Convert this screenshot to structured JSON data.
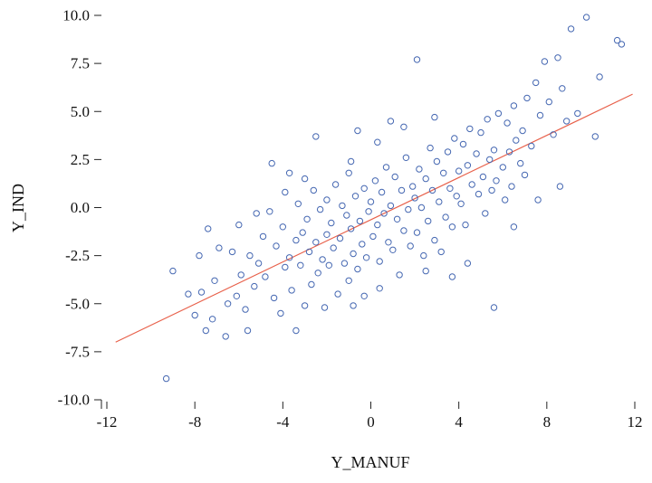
{
  "chart_data": {
    "type": "scatter",
    "title": "",
    "xlabel": "Y_MANUF",
    "ylabel": "Y_IND",
    "xlim": [
      -12,
      12
    ],
    "ylim": [
      -10,
      10
    ],
    "grid": false,
    "legend": null,
    "x_ticks": [
      -12,
      -8,
      -4,
      0,
      4,
      8,
      12
    ],
    "y_ticks": [
      10,
      7.5,
      5,
      2.5,
      0,
      -2.5,
      -5,
      -7.5,
      -10
    ],
    "point_color": "#4668b2",
    "fit_line": {
      "x1": -11.6,
      "y1": -7.0,
      "x2": 11.9,
      "y2": 5.9,
      "color": "#e8604a"
    },
    "points": [
      [
        -9.3,
        -8.9
      ],
      [
        -9.0,
        -3.3
      ],
      [
        -8.3,
        -4.5
      ],
      [
        -8.0,
        -5.6
      ],
      [
        -7.8,
        -2.5
      ],
      [
        -7.7,
        -4.4
      ],
      [
        -7.5,
        -6.4
      ],
      [
        -7.4,
        -1.1
      ],
      [
        -7.2,
        -5.8
      ],
      [
        -7.1,
        -3.8
      ],
      [
        -6.9,
        -2.1
      ],
      [
        -6.6,
        -6.7
      ],
      [
        -6.5,
        -5.0
      ],
      [
        -6.3,
        -2.3
      ],
      [
        -6.1,
        -4.6
      ],
      [
        -6.0,
        -0.9
      ],
      [
        -5.9,
        -3.5
      ],
      [
        -5.7,
        -5.3
      ],
      [
        -5.6,
        -6.4
      ],
      [
        -5.5,
        -2.5
      ],
      [
        -5.3,
        -4.1
      ],
      [
        -5.2,
        -0.3
      ],
      [
        -5.1,
        -2.9
      ],
      [
        -4.9,
        -1.5
      ],
      [
        -4.8,
        -3.6
      ],
      [
        -4.6,
        -0.2
      ],
      [
        -4.5,
        2.3
      ],
      [
        -4.4,
        -4.7
      ],
      [
        -4.3,
        -2.0
      ],
      [
        -4.1,
        -5.5
      ],
      [
        -4.0,
        -1.0
      ],
      [
        -3.9,
        -3.1
      ],
      [
        -3.9,
        0.8
      ],
      [
        -3.7,
        1.8
      ],
      [
        -3.7,
        -2.6
      ],
      [
        -3.6,
        -4.3
      ],
      [
        -3.4,
        -1.7
      ],
      [
        -3.4,
        -6.4
      ],
      [
        -3.3,
        0.2
      ],
      [
        -3.2,
        -3.0
      ],
      [
        -3.1,
        -1.3
      ],
      [
        -3.0,
        -5.1
      ],
      [
        -3.0,
        1.5
      ],
      [
        -2.9,
        -0.6
      ],
      [
        -2.8,
        -2.3
      ],
      [
        -2.7,
        -4.0
      ],
      [
        -2.6,
        0.9
      ],
      [
        -2.5,
        3.7
      ],
      [
        -2.5,
        -1.8
      ],
      [
        -2.4,
        -3.4
      ],
      [
        -2.3,
        -0.1
      ],
      [
        -2.2,
        -2.7
      ],
      [
        -2.1,
        -5.2
      ],
      [
        -2.0,
        0.4
      ],
      [
        -2.0,
        -1.4
      ],
      [
        -1.9,
        -3.0
      ],
      [
        -1.8,
        -0.8
      ],
      [
        -1.7,
        -2.1
      ],
      [
        -1.6,
        1.2
      ],
      [
        -1.5,
        -4.5
      ],
      [
        -1.4,
        -1.6
      ],
      [
        -1.3,
        0.1
      ],
      [
        -1.2,
        -2.9
      ],
      [
        -1.1,
        -0.4
      ],
      [
        -1.0,
        -3.8
      ],
      [
        -1.0,
        1.8
      ],
      [
        -0.9,
        -1.1
      ],
      [
        -0.9,
        2.4
      ],
      [
        -0.8,
        -2.4
      ],
      [
        -0.8,
        -5.1
      ],
      [
        -0.7,
        0.6
      ],
      [
        -0.6,
        -3.2
      ],
      [
        -0.6,
        4.0
      ],
      [
        -0.5,
        -0.7
      ],
      [
        -0.4,
        -1.9
      ],
      [
        -0.3,
        1.0
      ],
      [
        -0.3,
        -4.6
      ],
      [
        -0.2,
        -2.6
      ],
      [
        -0.1,
        -0.2
      ],
      [
        0.0,
        0.3
      ],
      [
        0.1,
        -1.5
      ],
      [
        0.2,
        1.4
      ],
      [
        0.3,
        -0.9
      ],
      [
        0.3,
        3.4
      ],
      [
        0.4,
        -2.8
      ],
      [
        0.4,
        -4.2
      ],
      [
        0.5,
        0.8
      ],
      [
        0.6,
        -0.3
      ],
      [
        0.7,
        2.1
      ],
      [
        0.8,
        -1.8
      ],
      [
        0.9,
        0.1
      ],
      [
        0.9,
        4.5
      ],
      [
        1.0,
        -2.2
      ],
      [
        1.1,
        1.6
      ],
      [
        1.2,
        -0.6
      ],
      [
        1.3,
        -3.5
      ],
      [
        1.4,
        0.9
      ],
      [
        1.5,
        -1.2
      ],
      [
        1.5,
        4.2
      ],
      [
        1.6,
        2.6
      ],
      [
        1.7,
        -0.1
      ],
      [
        1.8,
        -2.0
      ],
      [
        1.9,
        1.1
      ],
      [
        2.1,
        7.7
      ],
      [
        2.0,
        0.5
      ],
      [
        2.1,
        -1.3
      ],
      [
        2.2,
        2.0
      ],
      [
        2.3,
        0.0
      ],
      [
        2.4,
        -2.5
      ],
      [
        2.5,
        1.5
      ],
      [
        2.5,
        -3.3
      ],
      [
        2.6,
        -0.7
      ],
      [
        2.7,
        3.1
      ],
      [
        2.8,
        0.9
      ],
      [
        2.9,
        -1.7
      ],
      [
        2.9,
        4.7
      ],
      [
        3.0,
        2.4
      ],
      [
        3.1,
        0.3
      ],
      [
        3.2,
        -2.3
      ],
      [
        3.3,
        1.8
      ],
      [
        3.4,
        -0.5
      ],
      [
        3.5,
        2.9
      ],
      [
        3.6,
        1.0
      ],
      [
        3.7,
        -1.0
      ],
      [
        3.7,
        -3.6
      ],
      [
        3.8,
        3.6
      ],
      [
        3.9,
        0.6
      ],
      [
        4.0,
        1.9
      ],
      [
        4.1,
        0.2
      ],
      [
        4.2,
        3.3
      ],
      [
        4.3,
        -0.9
      ],
      [
        4.4,
        2.2
      ],
      [
        4.4,
        -2.9
      ],
      [
        4.5,
        4.1
      ],
      [
        4.6,
        1.2
      ],
      [
        4.8,
        2.8
      ],
      [
        4.9,
        0.7
      ],
      [
        5.0,
        3.9
      ],
      [
        5.1,
        1.6
      ],
      [
        5.2,
        -0.3
      ],
      [
        5.3,
        4.6
      ],
      [
        5.4,
        2.5
      ],
      [
        5.5,
        0.9
      ],
      [
        5.6,
        -5.2
      ],
      [
        5.6,
        3.0
      ],
      [
        5.7,
        1.4
      ],
      [
        5.8,
        4.9
      ],
      [
        6.0,
        2.1
      ],
      [
        6.1,
        0.4
      ],
      [
        6.2,
        4.4
      ],
      [
        6.3,
        2.9
      ],
      [
        6.4,
        1.1
      ],
      [
        6.5,
        5.3
      ],
      [
        6.5,
        -1.0
      ],
      [
        6.6,
        3.5
      ],
      [
        6.8,
        2.3
      ],
      [
        6.9,
        4.0
      ],
      [
        7.0,
        1.7
      ],
      [
        7.1,
        5.7
      ],
      [
        7.3,
        3.2
      ],
      [
        7.5,
        6.5
      ],
      [
        7.6,
        0.4
      ],
      [
        7.7,
        4.8
      ],
      [
        7.9,
        7.6
      ],
      [
        8.1,
        5.5
      ],
      [
        8.3,
        3.8
      ],
      [
        8.5,
        7.8
      ],
      [
        8.6,
        1.1
      ],
      [
        8.7,
        6.2
      ],
      [
        8.9,
        4.5
      ],
      [
        9.1,
        9.3
      ],
      [
        9.4,
        4.9
      ],
      [
        9.8,
        9.9
      ],
      [
        10.2,
        3.7
      ],
      [
        10.4,
        6.8
      ],
      [
        11.2,
        8.7
      ],
      [
        11.4,
        8.5
      ]
    ]
  }
}
